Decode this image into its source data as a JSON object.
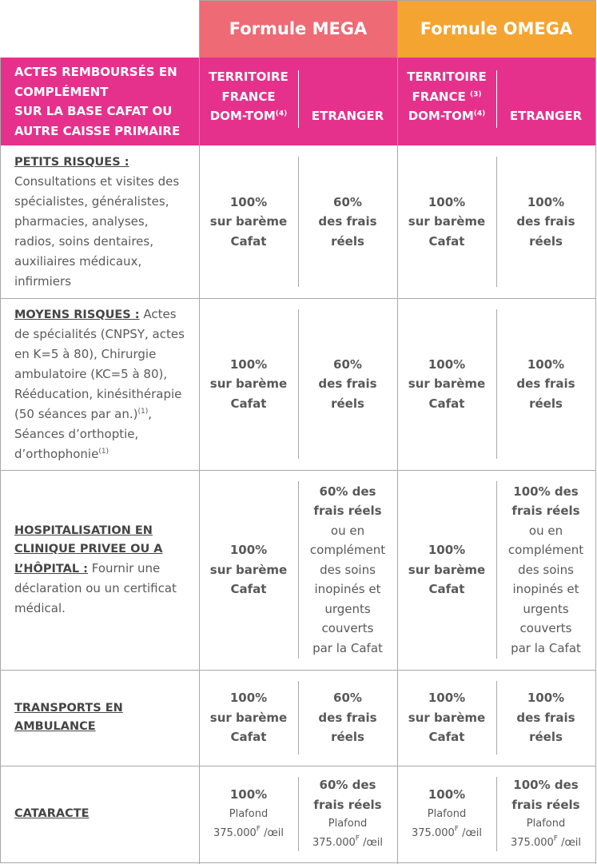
{
  "header": {
    "mega": "Formule MEGA",
    "omega": "Formule OMEGA",
    "actes": [
      [
        {
          "text": "ACTES REMBOURSÉS EN"
        }
      ],
      [
        {
          "text": "COMPLÉMENT"
        }
      ],
      [
        {
          "text": "SUR LA BASE CAFAT OU"
        }
      ],
      [
        {
          "text": "AUTRE CAISSE PRIMAIRE"
        }
      ]
    ],
    "sub": [
      [
        [
          {
            "text": "TERRITOIRE"
          }
        ],
        [
          {
            "text": "FRANCE"
          }
        ],
        [
          {
            "text": "DOM-TOM"
          },
          {
            "sup": "(4)"
          }
        ]
      ],
      [
        [
          {
            "text": "ETRANGER"
          }
        ]
      ],
      [
        [
          {
            "text": "TERRITOIRE"
          }
        ],
        [
          {
            "text": "FRANCE "
          },
          {
            "sup": "(3)"
          }
        ],
        [
          {
            "text": "DOM-TOM"
          },
          {
            "sup": "(4)"
          }
        ]
      ],
      [
        [
          {
            "text": "ETRANGER"
          }
        ]
      ]
    ]
  },
  "table": {
    "rows": [
      {
        "heading": "PETITS RISQUES :",
        "text": [
          {
            "text": " Consultations et visites des spécialistes, généralistes, pharmacies, analyses, radios, soins dentaires, auxiliaires médicaux, infirmiers"
          }
        ],
        "cells": [
          [
            [
              {
                "b": "100%"
              }
            ],
            [
              {
                "b": "sur barème"
              }
            ],
            [
              {
                "b": "Cafat"
              }
            ]
          ],
          [
            [
              {
                "b": "60%"
              }
            ],
            [
              {
                "b": "des frais"
              }
            ],
            [
              {
                "b": "réels"
              }
            ]
          ],
          [
            [
              {
                "b": "100%"
              }
            ],
            [
              {
                "b": "sur barème"
              }
            ],
            [
              {
                "b": "Cafat"
              }
            ]
          ],
          [
            [
              {
                "b": "100%"
              }
            ],
            [
              {
                "b": "des frais"
              }
            ],
            [
              {
                "b": "réels"
              }
            ]
          ]
        ]
      },
      {
        "heading": "MOYENS RISQUES :",
        "text": [
          {
            "text": " Actes de spécialités (CNPSY, actes en K=5 à 80), Chirurgie ambulatoire (KC=5 à 80), Rééducation, kinésithérapie (50 séances par an.)"
          },
          {
            "sup": "(1)"
          },
          {
            "text": ", Séances d’orthoptie, d’orthophonie"
          },
          {
            "sup": "(1)"
          }
        ],
        "cells": [
          [
            [
              {
                "b": "100%"
              }
            ],
            [
              {
                "b": "sur barème"
              }
            ],
            [
              {
                "b": "Cafat"
              }
            ]
          ],
          [
            [
              {
                "b": "60%"
              }
            ],
            [
              {
                "b": "des frais"
              }
            ],
            [
              {
                "b": "réels"
              }
            ]
          ],
          [
            [
              {
                "b": "100%"
              }
            ],
            [
              {
                "b": "sur barème"
              }
            ],
            [
              {
                "b": "Cafat"
              }
            ]
          ],
          [
            [
              {
                "b": "100%"
              }
            ],
            [
              {
                "b": "des frais"
              }
            ],
            [
              {
                "b": "réels"
              }
            ]
          ]
        ]
      },
      {
        "heading": "HOSPITALISATION EN CLINIQUE PRIVEE OU A L’HÔPITAL :",
        "text": [
          {
            "text": " Fournir une déclaration ou un certificat médical."
          }
        ],
        "cells": [
          [
            [
              {
                "b": "100%"
              }
            ],
            [
              {
                "b": "sur barème"
              }
            ],
            [
              {
                "b": "Cafat"
              }
            ]
          ],
          [
            [
              {
                "b": "60% des"
              }
            ],
            [
              {
                "b": "frais réels"
              }
            ],
            [
              {
                "text": "ou en"
              }
            ],
            [
              {
                "text": "complément"
              }
            ],
            [
              {
                "text": "des soins"
              }
            ],
            [
              {
                "text": "inopinés et"
              }
            ],
            [
              {
                "text": "urgents"
              }
            ],
            [
              {
                "text": "couverts"
              }
            ],
            [
              {
                "text": "par la Cafat"
              }
            ]
          ],
          [
            [
              {
                "b": "100%"
              }
            ],
            [
              {
                "b": "sur barème"
              }
            ],
            [
              {
                "b": "Cafat"
              }
            ]
          ],
          [
            [
              {
                "b": "100% des"
              }
            ],
            [
              {
                "b": "frais réels"
              }
            ],
            [
              {
                "text": "ou en"
              }
            ],
            [
              {
                "text": "complément"
              }
            ],
            [
              {
                "text": "des soins"
              }
            ],
            [
              {
                "text": "inopinés et"
              }
            ],
            [
              {
                "text": "urgents"
              }
            ],
            [
              {
                "text": "couverts"
              }
            ],
            [
              {
                "text": "par la Cafat"
              }
            ]
          ]
        ]
      },
      {
        "heading": "TRANSPORTS EN AMBULANCE",
        "text": [],
        "cells": [
          [
            [
              {
                "b": "100%"
              }
            ],
            [
              {
                "b": "sur barème"
              }
            ],
            [
              {
                "b": "Cafat"
              }
            ]
          ],
          [
            [
              {
                "b": "60%"
              }
            ],
            [
              {
                "b": "des frais"
              }
            ],
            [
              {
                "b": "réels"
              }
            ]
          ],
          [
            [
              {
                "b": "100%"
              }
            ],
            [
              {
                "b": "sur barème"
              }
            ],
            [
              {
                "b": "Cafat"
              }
            ]
          ],
          [
            [
              {
                "b": "100%"
              }
            ],
            [
              {
                "b": "des frais"
              }
            ],
            [
              {
                "b": "réels"
              }
            ]
          ]
        ]
      },
      {
        "heading": "CATARACTE",
        "text": [],
        "cells": [
          [
            [
              {
                "b": "100%"
              }
            ],
            [
              {
                "small": "Plafond"
              }
            ],
            [
              {
                "small": "375.000"
              },
              {
                "sup": "F"
              },
              {
                "small": " /œil"
              }
            ]
          ],
          [
            [
              {
                "b": "60% des"
              }
            ],
            [
              {
                "b": "frais réels"
              }
            ],
            [
              {
                "small": "Plafond"
              }
            ],
            [
              {
                "small": "375.000"
              },
              {
                "sup": "F"
              },
              {
                "small": " /œil"
              }
            ]
          ],
          [
            [
              {
                "b": "100%"
              }
            ],
            [
              {
                "small": "Plafond"
              }
            ],
            [
              {
                "small": "375.000"
              },
              {
                "sup": "F"
              },
              {
                "small": " /œil"
              }
            ]
          ],
          [
            [
              {
                "b": "100% des"
              }
            ],
            [
              {
                "b": "frais réels"
              }
            ],
            [
              {
                "small": "Plafond"
              }
            ],
            [
              {
                "small": "375.000"
              },
              {
                "sup": "F"
              },
              {
                "small": " /œil"
              }
            ]
          ]
        ]
      }
    ]
  }
}
